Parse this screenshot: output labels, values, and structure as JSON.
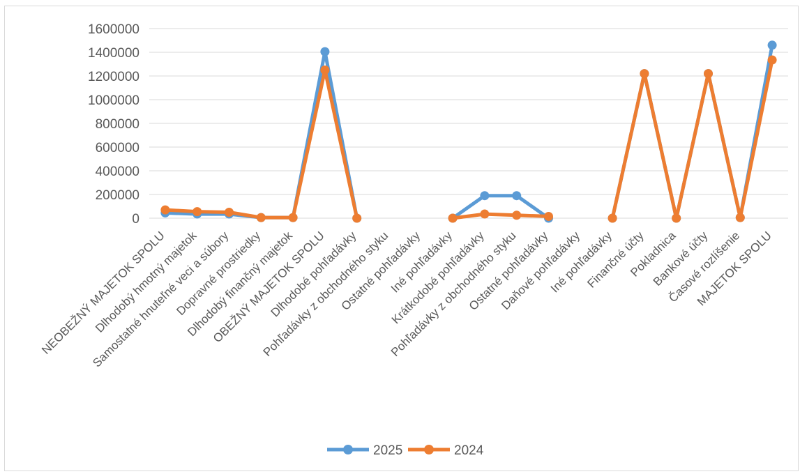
{
  "chart_data": {
    "type": "line",
    "categories": [
      "NEOBEŽNÝ MAJETOK SPOLU",
      "Dlhodobý hmotný majetok",
      "Samostatné hnuteľné veci a súbory",
      "Dopravné prostriedky",
      "Dlhodobý finančný majetok",
      "OBEŽNÝ MAJETOK SPOLU",
      "Dlhodobé pohľadávky",
      "Pohľadávky z obchodného styku",
      "Ostatné pohľadávky",
      "Iné pohľadávky",
      "Krátkodobé pohľadávky",
      "Pohľadávky z obchodného styku",
      "Ostatné pohľadávky",
      "Daňové pohľadávky",
      "Iné pohľadávky",
      "Finančné účty",
      "Pokladnica",
      "Bankové účty",
      "Časové rozlíšenie",
      "MAJETOK SPOLU"
    ],
    "series": [
      {
        "name": "2025",
        "color": "#5b9bd5",
        "values": [
          45000,
          35000,
          35000,
          5000,
          5000,
          1405000,
          0,
          null,
          null,
          0,
          190000,
          190000,
          0,
          null,
          0,
          1220000,
          0,
          1220000,
          5000,
          1460000
        ]
      },
      {
        "name": "2024",
        "color": "#ed7d31",
        "values": [
          70000,
          55000,
          50000,
          5000,
          5000,
          1250000,
          0,
          null,
          null,
          0,
          35000,
          25000,
          15000,
          null,
          0,
          1220000,
          0,
          1220000,
          5000,
          1335000
        ]
      }
    ],
    "yticks": [
      "0",
      "200000",
      "400000",
      "600000",
      "800000",
      "1000000",
      "1200000",
      "1400000",
      "1600000"
    ],
    "ylim": [
      0,
      1600000
    ],
    "title": "",
    "xlabel": "",
    "ylabel": "",
    "grid": true,
    "legend_position": "bottom"
  }
}
